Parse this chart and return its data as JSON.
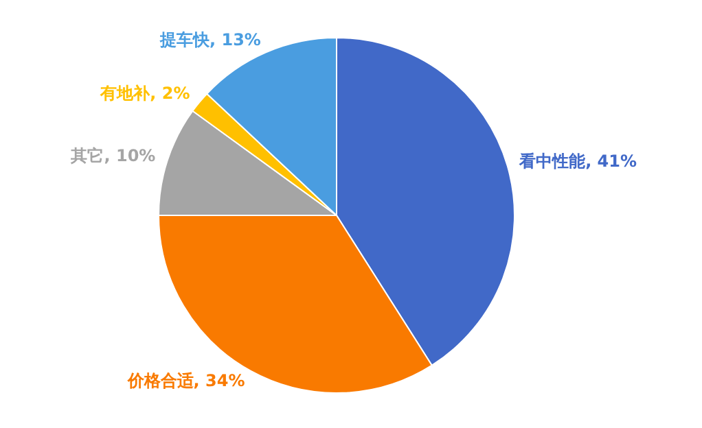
{
  "chart_data": {
    "type": "pie",
    "categories": [
      "看中性能",
      "价格合适",
      "其它",
      "有地补",
      "提车快"
    ],
    "values": [
      41,
      34,
      10,
      2,
      13
    ],
    "value_labels": [
      "41%",
      "34%",
      "10%",
      "2%",
      "13%"
    ],
    "colors": [
      "#4169c8",
      "#f97a00",
      "#a5a5a5",
      "#ffc000",
      "#4a9de0"
    ],
    "legend": false
  }
}
